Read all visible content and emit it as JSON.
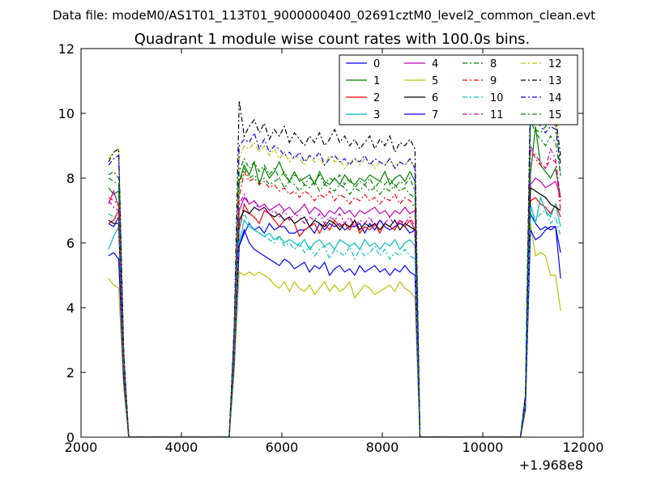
{
  "chart_data": {
    "type": "line",
    "suptitle": "Data file: modeM0/AS1T01_113T01_9000000400_02691cztM0_level2_common_clean.evt",
    "title": "Quadrant 1 module wise count rates with 100.0s bins.",
    "xlabel": "",
    "ylabel": "",
    "x_offset_label": "+1.968e8",
    "xlim": [
      2000,
      12000
    ],
    "ylim": [
      0,
      12
    ],
    "xticks": [
      2000,
      4000,
      6000,
      8000,
      10000,
      12000
    ],
    "yticks": [
      0,
      2,
      4,
      6,
      8,
      10,
      12
    ],
    "grid": false,
    "legend": {
      "placement": "top-right",
      "columns": 4
    },
    "x": [
      2550,
      2650,
      2750,
      2850,
      2950,
      4950,
      5050,
      5150,
      5250,
      5350,
      5450,
      5550,
      5650,
      5750,
      5850,
      5950,
      6050,
      6150,
      6250,
      6350,
      6450,
      6550,
      6650,
      6750,
      6850,
      6950,
      7050,
      7150,
      7250,
      7350,
      7450,
      7550,
      7650,
      7750,
      7850,
      7950,
      8050,
      8150,
      8250,
      8350,
      8450,
      8550,
      8650,
      8750,
      10750,
      10850,
      10950,
      11050,
      11150,
      11250,
      11350,
      11450,
      11550
    ],
    "series": [
      {
        "name": "0",
        "color": "#0000ff",
        "dash": "solid",
        "values": [
          6.6,
          6.5,
          6.8,
          2.0,
          0,
          0,
          2.5,
          5.9,
          6.3,
          6.6,
          6.4,
          6.5,
          6.3,
          6.6,
          6.4,
          6.5,
          6.5,
          6.3,
          6.3,
          6.4,
          6.4,
          6.5,
          6.3,
          6.6,
          6.4,
          6.6,
          6.5,
          6.6,
          6.4,
          6.5,
          6.5,
          6.6,
          6.3,
          6.6,
          6.4,
          6.7,
          6.5,
          6.4,
          6.5,
          6.6,
          6.5,
          6.3,
          6.4,
          0,
          0,
          1.0,
          6.9,
          6.6,
          6.4,
          6.5,
          6.4,
          6.5,
          5.7
        ]
      },
      {
        "name": "1",
        "color": "#008000",
        "dash": "solid",
        "values": [
          7.7,
          7.5,
          7.6,
          2.2,
          0,
          0,
          2.8,
          7.9,
          8.4,
          8.1,
          8.5,
          7.8,
          8.3,
          8.0,
          8.2,
          8.5,
          8.1,
          7.9,
          8.2,
          7.9,
          8.0,
          8.1,
          7.8,
          8.2,
          7.9,
          7.8,
          8.0,
          7.8,
          8.1,
          7.9,
          7.8,
          8.0,
          7.9,
          8.1,
          8.0,
          7.9,
          8.2,
          7.8,
          8.0,
          8.1,
          7.9,
          8.2,
          7.9,
          0,
          0,
          1.1,
          8.1,
          9.6,
          8.4,
          8.2,
          8.0,
          8.3,
          7.4
        ]
      },
      {
        "name": "2",
        "color": "#ff0000",
        "dash": "solid",
        "values": [
          6.6,
          6.7,
          7.0,
          2.1,
          0,
          0,
          2.6,
          6.4,
          7.2,
          6.9,
          6.8,
          6.6,
          7.0,
          6.9,
          6.7,
          6.5,
          6.7,
          6.8,
          6.6,
          6.2,
          6.4,
          6.5,
          6.6,
          6.3,
          6.6,
          6.4,
          6.7,
          6.5,
          6.6,
          6.4,
          6.7,
          6.3,
          6.5,
          6.4,
          6.6,
          6.3,
          6.6,
          6.5,
          6.4,
          6.7,
          6.5,
          6.7,
          6.4,
          0,
          0,
          1.1,
          7.3,
          7.4,
          7.2,
          7.1,
          6.9,
          7.2,
          6.8
        ]
      },
      {
        "name": "3",
        "color": "#00bfbf",
        "dash": "solid",
        "values": [
          5.8,
          6.2,
          6.5,
          2.0,
          0,
          0,
          2.4,
          6.0,
          6.7,
          6.5,
          6.4,
          6.3,
          6.2,
          6.3,
          6.1,
          6.2,
          6.0,
          6.1,
          6.0,
          5.9,
          6.1,
          5.8,
          6.0,
          6.1,
          5.9,
          6.0,
          5.8,
          6.1,
          6.0,
          5.9,
          6.0,
          5.8,
          6.1,
          5.9,
          6.0,
          5.8,
          6.0,
          5.9,
          6.1,
          5.8,
          6.0,
          6.1,
          5.9,
          0,
          0,
          1.0,
          7.2,
          6.6,
          7.4,
          7.0,
          6.8,
          7.2,
          6.5
        ]
      },
      {
        "name": "4",
        "color": "#bf00bf",
        "dash": "solid",
        "values": [
          7.2,
          7.6,
          7.1,
          2.2,
          0,
          0,
          2.7,
          7.0,
          7.4,
          7.2,
          7.3,
          7.1,
          7.2,
          7.0,
          7.1,
          7.2,
          7.0,
          7.1,
          6.9,
          7.0,
          7.2,
          6.9,
          7.1,
          7.0,
          6.8,
          7.0,
          6.9,
          7.1,
          6.9,
          7.0,
          6.8,
          7.0,
          6.9,
          7.0,
          7.1,
          6.9,
          7.0,
          6.8,
          7.0,
          6.9,
          7.1,
          6.9,
          7.0,
          0,
          0,
          1.1,
          7.8,
          8.0,
          7.9,
          7.7,
          7.8,
          7.9,
          7.4
        ]
      },
      {
        "name": "5",
        "color": "#bfbf00",
        "dash": "solid",
        "values": [
          4.9,
          4.7,
          4.6,
          1.5,
          0,
          0,
          2.0,
          5.1,
          5.0,
          5.1,
          5.0,
          5.1,
          5.0,
          4.9,
          4.7,
          4.6,
          4.8,
          4.5,
          4.8,
          4.6,
          4.5,
          4.7,
          4.4,
          4.6,
          4.8,
          4.5,
          4.7,
          4.5,
          4.6,
          4.8,
          4.3,
          4.5,
          4.7,
          4.6,
          4.4,
          4.5,
          4.6,
          4.7,
          4.5,
          4.8,
          4.6,
          4.5,
          4.3,
          0,
          0,
          0.8,
          6.6,
          5.6,
          5.7,
          5.6,
          5.0,
          5.0,
          3.9
        ]
      },
      {
        "name": "6",
        "color": "#000000",
        "dash": "solid",
        "values": [
          6.7,
          6.6,
          6.6,
          2.0,
          0,
          0,
          2.6,
          6.7,
          7.0,
          6.9,
          7.1,
          7.0,
          7.1,
          6.9,
          6.8,
          6.9,
          6.7,
          6.8,
          6.6,
          6.7,
          6.8,
          6.5,
          6.7,
          6.6,
          6.5,
          6.7,
          6.6,
          6.4,
          6.6,
          6.5,
          6.7,
          6.4,
          6.6,
          6.5,
          6.6,
          6.4,
          6.6,
          6.5,
          6.7,
          6.4,
          6.6,
          6.5,
          6.4,
          0,
          0,
          1.0,
          7.7,
          7.6,
          7.5,
          7.4,
          7.2,
          7.1,
          7.0
        ]
      },
      {
        "name": "7",
        "color": "#0000ff",
        "dash": "solid",
        "values": [
          5.6,
          5.7,
          5.5,
          1.8,
          0,
          0,
          2.3,
          5.9,
          6.4,
          6.0,
          5.8,
          5.7,
          5.6,
          5.5,
          5.4,
          5.3,
          5.5,
          5.4,
          5.2,
          5.3,
          5.4,
          5.1,
          5.3,
          5.2,
          5.4,
          5.0,
          5.2,
          5.3,
          5.1,
          5.2,
          5.0,
          5.3,
          5.1,
          5.2,
          5.3,
          5.1,
          5.2,
          5.0,
          5.2,
          5.1,
          5.3,
          5.1,
          5.0,
          0,
          0,
          0.9,
          6.4,
          6.1,
          6.2,
          6.4,
          6.5,
          6.5,
          4.9
        ]
      },
      {
        "name": "8",
        "color": "#008000",
        "dash": "dashdot",
        "values": [
          8.0,
          7.9,
          7.8,
          2.4,
          0,
          0,
          2.9,
          7.8,
          8.3,
          8.0,
          8.1,
          7.9,
          8.0,
          7.8,
          7.9,
          8.0,
          7.7,
          7.9,
          7.8,
          7.6,
          7.8,
          7.7,
          7.9,
          7.6,
          7.8,
          7.7,
          7.6,
          7.8,
          7.7,
          7.5,
          7.7,
          7.6,
          7.8,
          7.6,
          7.7,
          7.5,
          7.7,
          7.6,
          7.8,
          7.6,
          7.7,
          7.5,
          7.4,
          0,
          0,
          1.2,
          9.7,
          9.5,
          9.4,
          9.6,
          9.8,
          9.9,
          8.0
        ]
      },
      {
        "name": "9",
        "color": "#ff0000",
        "dash": "dashdot",
        "values": [
          7.4,
          7.3,
          7.2,
          2.2,
          0,
          0,
          2.8,
          7.4,
          8.2,
          7.9,
          8.0,
          7.8,
          7.9,
          7.7,
          7.8,
          7.6,
          7.7,
          7.5,
          7.6,
          7.4,
          7.6,
          7.5,
          7.3,
          7.5,
          7.4,
          7.6,
          7.3,
          7.5,
          7.4,
          7.2,
          7.4,
          7.3,
          7.5,
          7.3,
          7.4,
          7.2,
          7.4,
          7.3,
          7.5,
          7.2,
          7.4,
          7.3,
          7.1,
          0,
          0,
          1.1,
          8.9,
          8.6,
          8.4,
          8.3,
          8.6,
          8.5,
          7.0
        ]
      },
      {
        "name": "10",
        "color": "#00bfbf",
        "dash": "dashdot",
        "values": [
          6.9,
          6.8,
          6.7,
          2.1,
          0,
          0,
          2.5,
          6.5,
          6.9,
          6.6,
          6.4,
          6.3,
          6.2,
          6.1,
          6.0,
          6.2,
          5.9,
          6.0,
          5.8,
          6.0,
          5.7,
          5.9,
          5.6,
          5.8,
          5.9,
          5.5,
          5.8,
          5.7,
          5.6,
          5.9,
          5.5,
          5.8,
          5.6,
          5.7,
          5.9,
          5.6,
          5.8,
          5.5,
          5.7,
          5.6,
          5.8,
          5.6,
          5.5,
          0,
          0,
          1.0,
          7.1,
          6.7,
          6.9,
          7.0,
          6.6,
          6.8,
          6.2
        ]
      },
      {
        "name": "11",
        "color": "#bf00bf",
        "dash": "dashdot",
        "values": [
          7.3,
          7.1,
          7.0,
          2.2,
          0,
          0,
          2.7,
          7.2,
          7.5,
          7.2,
          7.3,
          7.0,
          7.1,
          6.9,
          7.0,
          6.8,
          7.0,
          6.7,
          6.9,
          6.8,
          6.6,
          6.8,
          6.7,
          6.9,
          6.6,
          6.8,
          6.7,
          6.9,
          6.6,
          6.8,
          6.5,
          6.7,
          6.6,
          6.8,
          6.5,
          6.7,
          6.6,
          6.8,
          6.5,
          6.7,
          6.6,
          6.8,
          6.5,
          0,
          0,
          1.1,
          9.0,
          8.7,
          8.5,
          8.3,
          8.9,
          8.6,
          7.3
        ]
      },
      {
        "name": "12",
        "color": "#bfbf00",
        "dash": "dashdot",
        "values": [
          8.6,
          8.8,
          8.9,
          2.6,
          0,
          0,
          3.2,
          8.6,
          9.0,
          8.9,
          9.1,
          8.8,
          9.0,
          8.7,
          8.9,
          8.6,
          8.8,
          8.5,
          8.7,
          8.6,
          8.4,
          8.7,
          8.5,
          8.6,
          8.4,
          8.7,
          8.5,
          8.6,
          8.3,
          8.5,
          8.6,
          8.4,
          8.6,
          8.5,
          8.3,
          8.5,
          8.4,
          8.6,
          8.3,
          8.5,
          8.4,
          8.6,
          8.3,
          0,
          0,
          1.3,
          10.7,
          10.2,
          9.9,
          9.7,
          9.8,
          9.6,
          8.5
        ]
      },
      {
        "name": "13",
        "color": "#000000",
        "dash": "dashdot",
        "values": [
          8.5,
          8.8,
          8.9,
          2.7,
          0,
          0,
          3.4,
          10.4,
          9.3,
          9.6,
          9.8,
          9.4,
          9.7,
          9.2,
          9.5,
          9.3,
          9.6,
          9.1,
          9.4,
          9.2,
          9.0,
          9.3,
          9.1,
          9.4,
          9.0,
          9.2,
          9.5,
          9.1,
          9.3,
          9.0,
          9.2,
          8.9,
          9.1,
          9.3,
          8.9,
          9.2,
          9.0,
          9.3,
          8.8,
          9.1,
          9.0,
          9.2,
          8.9,
          0,
          0,
          1.3,
          10.9,
          10.6,
          10.4,
          10.2,
          10.0,
          9.9,
          8.7
        ]
      },
      {
        "name": "14",
        "color": "#0000ff",
        "dash": "dashdot",
        "values": [
          8.4,
          8.6,
          8.7,
          2.6,
          0,
          0,
          3.3,
          9.0,
          9.2,
          9.1,
          9.4,
          8.9,
          9.2,
          8.8,
          9.0,
          8.9,
          8.7,
          8.8,
          8.6,
          8.8,
          8.5,
          8.7,
          8.6,
          8.8,
          8.4,
          8.6,
          8.7,
          8.5,
          8.6,
          8.4,
          8.6,
          8.5,
          8.7,
          8.4,
          8.6,
          8.5,
          8.4,
          8.6,
          8.3,
          8.5,
          8.4,
          8.6,
          8.3,
          0,
          0,
          1.3,
          10.1,
          9.8,
          9.6,
          9.4,
          9.6,
          9.5,
          8.4
        ]
      },
      {
        "name": "15",
        "color": "#008000",
        "dash": "dashdot",
        "values": [
          8.1,
          8.2,
          8.0,
          2.5,
          0,
          0,
          3.0,
          8.2,
          8.6,
          8.3,
          8.5,
          8.2,
          8.4,
          8.1,
          8.3,
          8.0,
          8.2,
          7.9,
          8.1,
          8.0,
          7.8,
          8.0,
          7.9,
          8.1,
          7.8,
          8.0,
          7.9,
          8.1,
          7.8,
          8.0,
          7.7,
          7.9,
          7.8,
          8.0,
          7.7,
          7.9,
          7.8,
          8.0,
          7.7,
          7.9,
          7.8,
          8.0,
          7.6,
          0,
          0,
          1.2,
          9.8,
          9.4,
          9.2,
          9.0,
          9.3,
          9.1,
          8.1
        ]
      }
    ]
  }
}
